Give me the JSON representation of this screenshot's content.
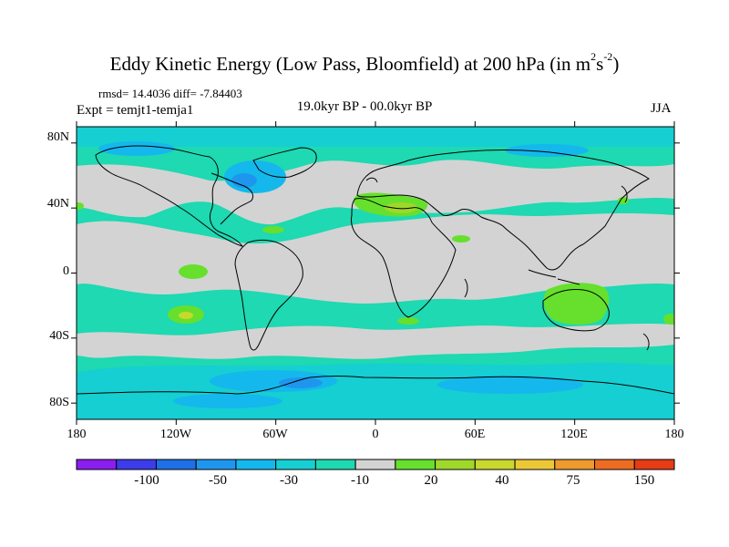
{
  "title": {
    "main": "Eddy Kinetic Energy (Low Pass, Bloomfield) at 200 hPa (in m",
    "sup1": "2",
    "mid": "s",
    "sup2": "-2",
    "close": ")"
  },
  "subtitle": {
    "stats": "rmsd= 14.4036 diff= -7.84403",
    "experiment": "Expt = temjt1-temja1",
    "period": "19.0kyr BP - 00.0kyr BP",
    "season": "JJA"
  },
  "axes": {
    "lat_labels": [
      "80N",
      "40N",
      "0",
      "40S",
      "80S"
    ],
    "lat_values": [
      80,
      40,
      0,
      -40,
      -80
    ],
    "lon_labels": [
      "180",
      "120W",
      "60W",
      "0",
      "60E",
      "120E",
      "180"
    ],
    "lon_values": [
      -180,
      -120,
      -60,
      0,
      60,
      120,
      180
    ]
  },
  "colorbar": {
    "colors": [
      "#8a1ef0",
      "#3c3cea",
      "#1f6fe6",
      "#1f96ee",
      "#14b8ec",
      "#15cfd2",
      "#1ed9b1",
      "#d3d3d3",
      "#66e02c",
      "#9ed82a",
      "#c8d82c",
      "#ecc836",
      "#ee9a2c",
      "#ec6c22",
      "#e63c16"
    ],
    "labels": [
      "-100",
      "-50",
      "-30",
      "-10",
      "20",
      "40",
      "75",
      "150"
    ]
  },
  "map_colors": {
    "cyan": "#1ed9b1",
    "teal": "#15cfd2",
    "blue": "#14b8ec",
    "deep_blue": "#1f96ee",
    "gray": "#d3d3d3",
    "green": "#66e02c",
    "yellow_green": "#9ed82a",
    "yellow": "#c8d82c",
    "coast": "#000000"
  }
}
